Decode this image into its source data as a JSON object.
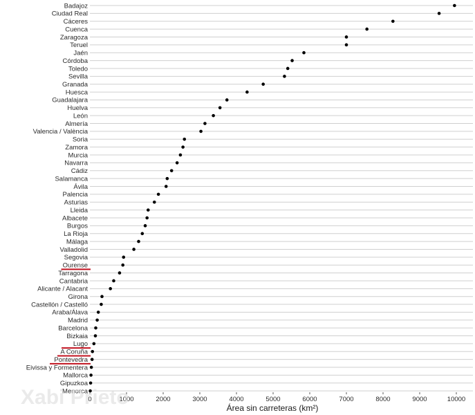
{
  "chart_data": {
    "type": "scatter",
    "categories": [
      "Badajoz",
      "Ciudad Real",
      "Cáceres",
      "Cuenca",
      "Zaragoza",
      "Teruel",
      "Jaén",
      "Córdoba",
      "Toledo",
      "Sevilla",
      "Granada",
      "Huesca",
      "Guadalajara",
      "Huelva",
      "León",
      "Almería",
      "Valencia / València",
      "Soria",
      "Zamora",
      "Murcia",
      "Navarra",
      "Cádiz",
      "Salamanca",
      "Ávila",
      "Palencia",
      "Asturias",
      "Lleida",
      "Albacete",
      "Burgos",
      "La Rioja",
      "Málaga",
      "Valladolid",
      "Segovia",
      "Ourense",
      "Tarragona",
      "Cantabria",
      "Alicante / Alacant",
      "Girona",
      "Castellón / Castelló",
      "Araba/Álava",
      "Madrid",
      "Barcelona",
      "Bizkaia",
      "Lugo",
      "A Coruña",
      "Pontevedra",
      "Eivissa y Formentera",
      "Mallorca",
      "Gipuzkoa",
      "Menorca"
    ],
    "values": [
      9950,
      9530,
      8270,
      7560,
      7000,
      7000,
      5840,
      5520,
      5400,
      5310,
      4730,
      4290,
      3740,
      3550,
      3370,
      3140,
      3030,
      2580,
      2540,
      2470,
      2380,
      2230,
      2110,
      2080,
      1870,
      1760,
      1590,
      1560,
      1510,
      1430,
      1330,
      1200,
      920,
      900,
      810,
      650,
      560,
      330,
      310,
      230,
      200,
      160,
      150,
      110,
      70,
      60,
      40,
      30,
      20,
      10
    ],
    "highlighted": [
      "Ourense",
      "Lugo",
      "A Coruña",
      "Pontevedra"
    ],
    "title": "",
    "xlabel": "Área sin carreteras (km²)",
    "ylabel": "",
    "xlim": [
      -200,
      10250
    ],
    "xticks": [
      "0",
      "1000",
      "2000",
      "3000",
      "4000",
      "5000",
      "6000",
      "7000",
      "8000",
      "9000",
      "10000"
    ],
    "grid": "horizontal",
    "colors": {
      "point": "#000000",
      "grid": "#cfcfcf",
      "highlight": "#c1121f"
    }
  },
  "watermark": "Xabi Prieto"
}
